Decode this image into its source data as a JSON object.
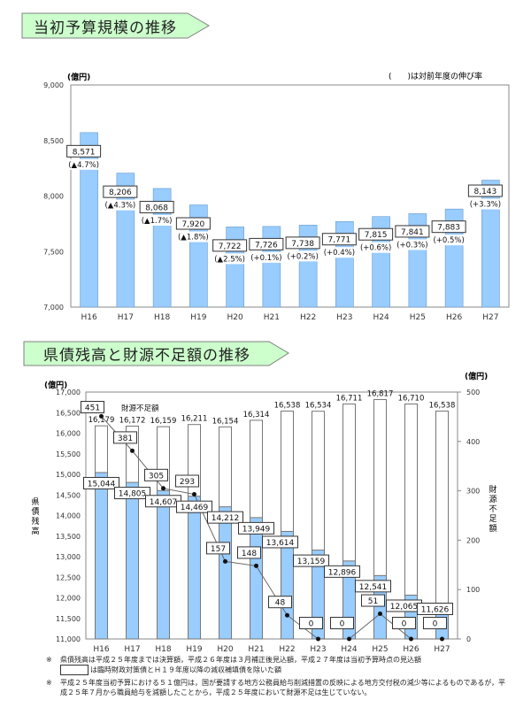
{
  "chart_data": [
    {
      "type": "bar",
      "title": "当初予算規模の推移",
      "unit_label": "(億円)",
      "note": "(　　)は対前年度の伸び率",
      "categories": [
        "H16",
        "H17",
        "H18",
        "H19",
        "H20",
        "H21",
        "H22",
        "H23",
        "H24",
        "H25",
        "H26",
        "H27"
      ],
      "values": [
        8571,
        8206,
        8068,
        7920,
        7722,
        7726,
        7738,
        7771,
        7815,
        7841,
        7883,
        8143
      ],
      "value_labels": [
        "8,571",
        "8,206",
        "8,068",
        "7,920",
        "7,722",
        "7,726",
        "7,738",
        "7,771",
        "7,815",
        "7,841",
        "7,883",
        "8,143"
      ],
      "growth_labels": [
        "(▲4.7%)",
        "(▲4.3%)",
        "(▲1.7%)",
        "(▲1.8%)",
        "(▲2.5%)",
        "(+0.1%)",
        "(+0.2%)",
        "(+0.4%)",
        "(+0.6%)",
        "(+0.3%)",
        "(+0.5%)",
        "(+3.3%)"
      ],
      "ylim": [
        7000,
        9000
      ],
      "yticks": [
        7000,
        7500,
        8000,
        8500,
        9000
      ],
      "ytick_labels": [
        "7,000",
        "7,500",
        "8,000",
        "8,500",
        "9,000"
      ],
      "bar_color": "#99ccff"
    },
    {
      "type": "bar+line",
      "title": "県債残高と財源不足額の推移",
      "left_unit_label": "(億円)",
      "right_unit_label": "(億円)",
      "ylabel": "県債残高",
      "y2label": "財源不足額",
      "categories": [
        "H16",
        "H17",
        "H18",
        "H19",
        "H20",
        "H21",
        "H22",
        "H23",
        "H24",
        "H25",
        "H26",
        "H27"
      ],
      "total_values": [
        16179,
        16172,
        16159,
        16211,
        16154,
        16314,
        16538,
        16534,
        16711,
        16817,
        16710,
        16538
      ],
      "total_labels": [
        "16,179",
        "16,172",
        "16,159",
        "16,211",
        "16,154",
        "16,314",
        "16,538",
        "16,534",
        "16,711",
        "16,817",
        "16,710",
        "16,538"
      ],
      "excl_values": [
        15044,
        14805,
        14607,
        14469,
        14212,
        13949,
        13614,
        13159,
        12896,
        12541,
        12065,
        11626
      ],
      "excl_labels": [
        "15,044",
        "14,805",
        "14,607",
        "14,469",
        "14,212",
        "13,949",
        "13,614",
        "13,159",
        "12,896",
        "12,541",
        "12,065",
        "11,626"
      ],
      "shortfall_name": "財源不足額",
      "shortfall_values": [
        451,
        381,
        305,
        293,
        157,
        148,
        48,
        0,
        0,
        51,
        0,
        0
      ],
      "shortfall_labels": [
        "451",
        "381",
        "305",
        "293",
        "157",
        "148",
        "48",
        "0",
        "0",
        "51",
        "0",
        "0"
      ],
      "ylim": [
        11000,
        17000
      ],
      "yticks": [
        11000,
        11500,
        12000,
        12500,
        13000,
        13500,
        14000,
        14500,
        15000,
        15500,
        16000,
        16500,
        17000
      ],
      "ytick_labels": [
        "11,000",
        "11,500",
        "12,000",
        "12,500",
        "13,000",
        "13,500",
        "14,000",
        "14,500",
        "15,000",
        "15,500",
        "16,000",
        "16,500",
        "17,000"
      ],
      "y2lim": [
        0,
        500
      ],
      "y2ticks": [
        0,
        100,
        200,
        300,
        400,
        500
      ],
      "y2tick_labels": [
        "0",
        "100",
        "200",
        "300",
        "400",
        "500"
      ],
      "bar_color": "#99ccff"
    }
  ],
  "notes": [
    {
      "mark": "※",
      "text": "県債残高は平成２５年度までは決算額，平成２６年度は３月補正後見込額，平成２７年度は当初予算時点の見込額",
      "legend_text": "は臨時財政対策債とＨ１９年度以降の減収補填債を除いた額"
    },
    {
      "mark": "※",
      "text": "平成２５年度当初予算における５１億円は，国が要請する地方公務員給与削減措置の反映による地方交付税の減少等によるものであるが，平成２５年７月から職員給与を減額したことから，平成２５年度において財源不足は生じていない。"
    }
  ],
  "colors": {
    "banner_fill": "#ccffcc",
    "banner_border": "#808080",
    "bar": "#99ccff"
  }
}
